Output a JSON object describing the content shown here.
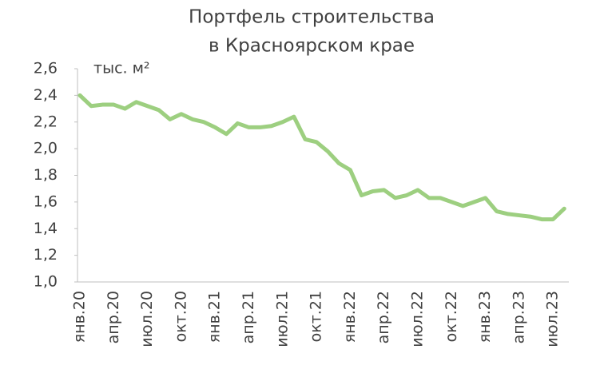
{
  "chart_data": {
    "type": "line",
    "title": [
      "Портфель строительства",
      "в Красноярском крае"
    ],
    "unit": "тыс. м²",
    "categories": [
      "янв.20",
      null,
      null,
      "апр.20",
      null,
      null,
      "июл.20",
      null,
      null,
      "окт.20",
      null,
      null,
      "янв.21",
      null,
      null,
      "апр.21",
      null,
      null,
      "июл.21",
      null,
      null,
      "окт.21",
      null,
      null,
      "янв.22",
      null,
      null,
      "апр.22",
      null,
      null,
      "июл.22",
      null,
      null,
      "окт.22",
      null,
      null,
      "янв.23",
      null,
      null,
      "апр.23",
      null,
      null,
      "июл.23",
      null
    ],
    "values": [
      2.4,
      2.32,
      2.33,
      2.33,
      2.3,
      2.35,
      2.32,
      2.29,
      2.22,
      2.26,
      2.22,
      2.2,
      2.16,
      2.11,
      2.19,
      2.16,
      2.16,
      2.17,
      2.2,
      2.24,
      2.07,
      2.05,
      1.98,
      1.89,
      1.84,
      1.65,
      1.68,
      1.69,
      1.63,
      1.65,
      1.69,
      1.63,
      1.63,
      1.6,
      1.57,
      1.6,
      1.63,
      1.53,
      1.51,
      1.5,
      1.49,
      1.47,
      1.47,
      1.55
    ],
    "color": "#9dcf80",
    "ylim": [
      1.0,
      2.6
    ],
    "yticks": [
      {
        "value": 1.0,
        "label": "1,0"
      },
      {
        "value": 1.2,
        "label": "1,2"
      },
      {
        "value": 1.4,
        "label": "1,4"
      },
      {
        "value": 1.6,
        "label": "1,6"
      },
      {
        "value": 1.8,
        "label": "1,8"
      },
      {
        "value": 2.0,
        "label": "2,0"
      },
      {
        "value": 2.2,
        "label": "2,2"
      },
      {
        "value": 2.4,
        "label": "2,4"
      },
      {
        "value": 2.6,
        "label": "2,6"
      }
    ],
    "grid": false
  }
}
